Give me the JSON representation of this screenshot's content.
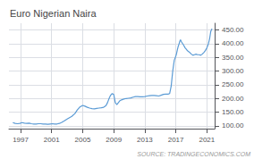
{
  "chart_data": {
    "type": "line",
    "title": "Euro Nigerian Naira",
    "annotations": [
      "SOURCE: TRADINGECONOMICS.COM"
    ],
    "color": "#5b9bd5",
    "x": [
      1996.0,
      1996.3,
      1996.6,
      1996.9,
      1997.2,
      1997.5,
      1997.8,
      1998.1,
      1998.4,
      1998.7,
      1999.0,
      1999.3,
      1999.6,
      1999.9,
      2000.2,
      2000.5,
      2000.8,
      2001.1,
      2001.4,
      2001.7,
      2002.0,
      2002.3,
      2002.6,
      2003.0,
      2003.3,
      2003.6,
      2004.0,
      2004.3,
      2004.6,
      2005.0,
      2005.3,
      2005.6,
      2005.9,
      2006.2,
      2006.5,
      2006.8,
      2007.1,
      2007.4,
      2007.7,
      2008.0,
      2008.2,
      2008.4,
      2008.6,
      2008.8,
      2009.0,
      2009.2,
      2009.4,
      2009.6,
      2009.8,
      2010.0,
      2010.3,
      2010.6,
      2010.9,
      2011.2,
      2011.5,
      2011.8,
      2012.1,
      2012.4,
      2012.7,
      2013.0,
      2013.3,
      2013.6,
      2013.9,
      2014.2,
      2014.5,
      2014.8,
      2015.1,
      2015.4,
      2015.7,
      2016.0,
      2016.2,
      2016.4,
      2016.6,
      2016.8,
      2017.0,
      2017.1,
      2017.2,
      2017.3,
      2017.4,
      2017.5,
      2017.6,
      2017.7,
      2018.0,
      2018.2,
      2018.4,
      2018.6,
      2018.8,
      2019.0,
      2019.2,
      2019.4,
      2019.6,
      2019.8,
      2020.0,
      2020.2,
      2020.4,
      2020.6,
      2020.8,
      2021.0,
      2021.2,
      2021.35,
      2021.5,
      2021.65
    ],
    "values": [
      112,
      109,
      108,
      109,
      112,
      110,
      109,
      110,
      108,
      107,
      107,
      108,
      108,
      107,
      107,
      106,
      107,
      108,
      107,
      107,
      109,
      113,
      118,
      125,
      130,
      135,
      145,
      158,
      168,
      175,
      172,
      168,
      165,
      163,
      162,
      164,
      165,
      166,
      168,
      174,
      185,
      200,
      212,
      218,
      215,
      185,
      178,
      185,
      192,
      195,
      198,
      200,
      201,
      202,
      205,
      207,
      207,
      206,
      206,
      207,
      209,
      210,
      211,
      211,
      210,
      209,
      212,
      215,
      216,
      216,
      218,
      245,
      300,
      340,
      355,
      365,
      378,
      390,
      398,
      408,
      415,
      408,
      395,
      385,
      378,
      372,
      368,
      362,
      358,
      360,
      362,
      360,
      360,
      358,
      362,
      368,
      375,
      385,
      400,
      418,
      445,
      455
    ],
    "xlim": [
      1995.5,
      2022.0
    ],
    "xticks": [
      1997,
      2001,
      2005,
      2009,
      2013,
      2017,
      2021
    ],
    "ylim": [
      90,
      475
    ],
    "yticks": [
      {
        "value": 100,
        "label": "100.00"
      },
      {
        "value": 150,
        "label": "150.00"
      },
      {
        "value": 200,
        "label": "200.00"
      },
      {
        "value": 250,
        "label": "250.00"
      },
      {
        "value": 300,
        "label": "300.00"
      },
      {
        "value": 350,
        "label": "350.00"
      },
      {
        "value": 400,
        "label": "400.00"
      },
      {
        "value": 450,
        "label": "450.00"
      }
    ],
    "grid": true
  }
}
